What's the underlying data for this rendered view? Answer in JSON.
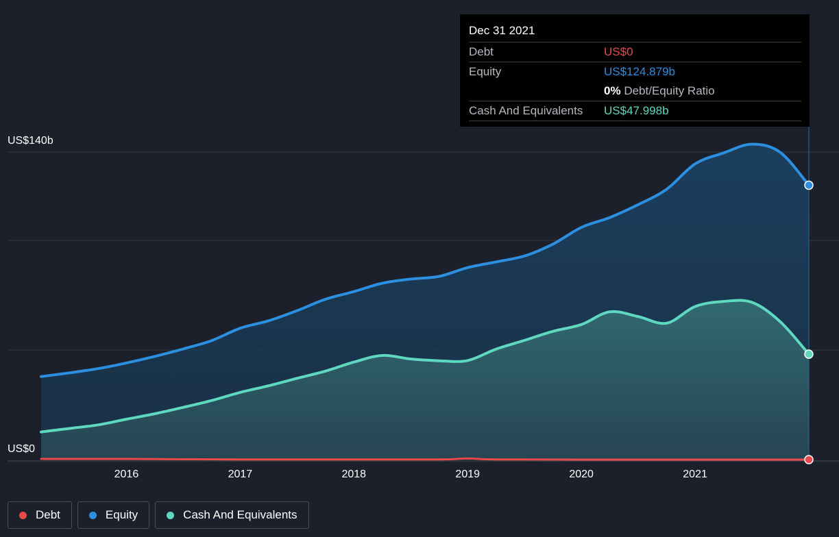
{
  "chart_data": {
    "type": "area",
    "title": "",
    "y_labels": {
      "top": "US$140b",
      "bottom": "US$0"
    },
    "ylim": [
      0,
      140
    ],
    "xlim": [
      2015.25,
      2022.0
    ],
    "x_ticks": [
      "2016",
      "2017",
      "2018",
      "2019",
      "2020",
      "2021"
    ],
    "x_tick_values": [
      2016,
      2017,
      2018,
      2019,
      2020,
      2021
    ],
    "series": [
      {
        "name": "Equity",
        "color": "#2c8fe0",
        "x": [
          2015.25,
          2015.5,
          2015.75,
          2016.0,
          2016.25,
          2016.5,
          2016.75,
          2017.0,
          2017.25,
          2017.5,
          2017.75,
          2018.0,
          2018.25,
          2018.5,
          2018.75,
          2019.0,
          2019.25,
          2019.5,
          2019.75,
          2020.0,
          2020.25,
          2020.5,
          2020.75,
          2021.0,
          2021.25,
          2021.5,
          2021.75,
          2022.0
        ],
        "values": [
          37.8,
          39.5,
          41.4,
          44.0,
          47.0,
          50.4,
          54.2,
          59.8,
          63.2,
          67.8,
          73.0,
          76.5,
          80.3,
          82.2,
          83.4,
          87.4,
          90.0,
          92.7,
          98.1,
          105.7,
          110.2,
          116.1,
          123.1,
          134.6,
          139.6,
          143.6,
          139.8,
          124.9
        ]
      },
      {
        "name": "Cash And Equivalents",
        "color": "#5fd8c0",
        "x": [
          2015.25,
          2015.5,
          2015.75,
          2016.0,
          2016.25,
          2016.5,
          2016.75,
          2017.0,
          2017.25,
          2017.5,
          2017.75,
          2018.0,
          2018.25,
          2018.5,
          2018.75,
          2019.0,
          2019.25,
          2019.5,
          2019.75,
          2020.0,
          2020.25,
          2020.5,
          2020.75,
          2021.0,
          2021.25,
          2021.5,
          2021.75,
          2022.0
        ],
        "values": [
          12.6,
          14.2,
          15.8,
          18.4,
          20.9,
          23.8,
          26.9,
          30.6,
          33.6,
          37.0,
          40.3,
          44.4,
          47.4,
          45.8,
          45.0,
          45.1,
          50.3,
          54.3,
          58.4,
          61.5,
          67.3,
          65.1,
          62.1,
          69.7,
          72.0,
          71.6,
          62.7,
          48.0
        ]
      },
      {
        "name": "Debt",
        "color": "#e84a4a",
        "x": [
          2015.25,
          2016.0,
          2017.0,
          2018.0,
          2018.75,
          2019.0,
          2019.25,
          2020.0,
          2021.0,
          2022.0
        ],
        "values": [
          0.3,
          0.3,
          0.1,
          0.1,
          0.1,
          0.5,
          0.1,
          0.0,
          0.0,
          0.0
        ]
      }
    ],
    "cursor_x": 2022.0
  },
  "tooltip": {
    "date": "Dec 31 2021",
    "debt_label": "Debt",
    "debt_value": "US$0",
    "equity_label": "Equity",
    "equity_value": "US$124.879b",
    "ratio_value": "0%",
    "ratio_label": "Debt/Equity Ratio",
    "cash_label": "Cash And Equivalents",
    "cash_value": "US$47.998b"
  },
  "legend": [
    {
      "label": "Debt",
      "color": "#e84a4a"
    },
    {
      "label": "Equity",
      "color": "#2c8fe0"
    },
    {
      "label": "Cash And Equivalents",
      "color": "#5fd8c0"
    }
  ]
}
